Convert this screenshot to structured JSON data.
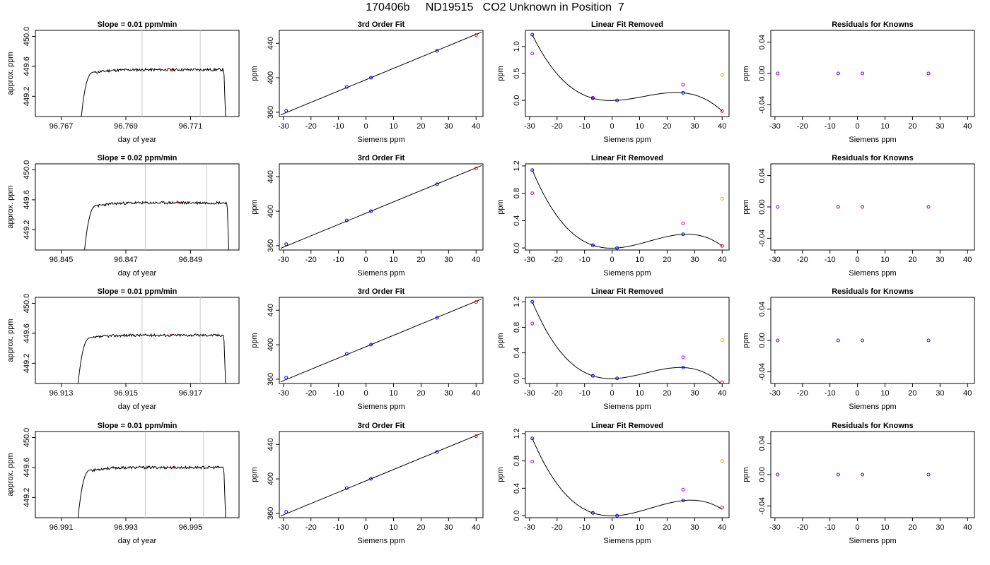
{
  "title": "170406b     ND19515   CO2 Unknown in Position  7",
  "colors": {
    "blue": "#0000ff",
    "magenta": "#cc00cc",
    "orange": "#ffa500",
    "red": "#ff0000",
    "purple": "#7a00cc",
    "vline": "#c8c8c8"
  },
  "chart_data": [
    {
      "row": 0,
      "kind": "trace",
      "type": "line",
      "title": "Slope =  0.01  ppm/min",
      "xlabel": "day of year",
      "ylabel": "approx. ppm",
      "xlim": [
        96.7662,
        96.7725
      ],
      "ylim": [
        448.93,
        450.08
      ],
      "xticks": [
        96.767,
        96.769,
        96.771
      ],
      "xdec": 3,
      "yticks": [
        449.2,
        449.6,
        450.0
      ],
      "ydec": 1,
      "start": 96.7676,
      "end": 96.7721,
      "plateau": 449.555,
      "vlines": [
        96.7695,
        96.7713
      ],
      "marker": [
        96.7704,
        449.55
      ],
      "seed": 11
    },
    {
      "row": 0,
      "kind": "fit",
      "type": "scatter",
      "title": "3rd Order Fit",
      "xlabel": "Siemens ppm",
      "ylabel": "ppm",
      "xlim": [
        -31.5,
        42.5
      ],
      "ylim": [
        355,
        455
      ],
      "xticks": [
        -30,
        -20,
        -10,
        0,
        10,
        20,
        30,
        40
      ],
      "yticks": [
        360,
        400,
        440
      ],
      "line": [
        [
          -31,
          357
        ],
        [
          42,
          453
        ]
      ],
      "points": [
        [
          -29,
          361.8
        ],
        [
          -7,
          389.3
        ],
        [
          1.8,
          400.1
        ],
        [
          25.8,
          431.2
        ],
        [
          40,
          449.6
        ]
      ]
    },
    {
      "row": 0,
      "kind": "linfit",
      "type": "scatter",
      "title": "Linear Fit Removed",
      "xlabel": "Siemens ppm",
      "ylabel": "ppm",
      "xlim": [
        -31.5,
        42.5
      ],
      "ylim": [
        -0.3,
        1.3
      ],
      "xticks": [
        -30,
        -20,
        -10,
        0,
        10,
        20,
        30,
        40
      ],
      "yticks": [
        0.0,
        0.5,
        1.0
      ],
      "ydec": 1,
      "curve": [
        1.22,
        0.04,
        0.0,
        0.14,
        -0.2
      ],
      "blue": [
        [
          -29,
          1.22
        ],
        [
          -7,
          0.04
        ],
        [
          1.8,
          0.0
        ],
        [
          25.8,
          0.14
        ]
      ],
      "magenta": [
        [
          -29,
          0.87
        ],
        [
          -7,
          0.05
        ],
        [
          25.8,
          0.29
        ]
      ],
      "orange": [
        40,
        0.47
      ],
      "red": [
        40,
        -0.2
      ]
    },
    {
      "row": 0,
      "kind": "resid",
      "type": "scatter",
      "title": "Residuals for Knowns",
      "xlabel": "Siemens ppm",
      "ylabel": "ppm",
      "xlim": [
        -31.5,
        42.5
      ],
      "ylim": [
        -0.055,
        0.055
      ],
      "xticks": [
        -30,
        -20,
        -10,
        0,
        10,
        20,
        30,
        40
      ],
      "yticks": [
        -0.04,
        0.0,
        0.04
      ],
      "ydec": 2,
      "points": [
        [
          -29,
          0
        ],
        [
          -7,
          0
        ],
        [
          1.8,
          0
        ],
        [
          25.8,
          0
        ]
      ]
    },
    {
      "row": 1,
      "kind": "trace",
      "type": "line",
      "title": "Slope =  0.02  ppm/min",
      "xlabel": "day of year",
      "ylabel": "approx. ppm",
      "xlim": [
        96.8442,
        96.8505
      ],
      "ylim": [
        448.93,
        450.08
      ],
      "xticks": [
        96.845,
        96.847,
        96.849
      ],
      "xdec": 3,
      "yticks": [
        449.2,
        449.6,
        450.0
      ],
      "ydec": 1,
      "start": 96.8457,
      "end": 96.8502,
      "plateau": 449.56,
      "vlines": [
        96.8476,
        96.8495
      ],
      "marker": [
        96.8486,
        449.57
      ],
      "seed": 23
    },
    {
      "row": 1,
      "kind": "fit",
      "type": "scatter",
      "title": "3rd Order Fit",
      "xlabel": "Siemens ppm",
      "ylabel": "ppm",
      "xlim": [
        -31.5,
        42.5
      ],
      "ylim": [
        355,
        455
      ],
      "xticks": [
        -30,
        -20,
        -10,
        0,
        10,
        20,
        30,
        40
      ],
      "yticks": [
        360,
        400,
        440
      ],
      "line": [
        [
          -31,
          357
        ],
        [
          42,
          453
        ]
      ],
      "points": [
        [
          -29,
          361.8
        ],
        [
          -7,
          389.3
        ],
        [
          1.8,
          400.1
        ],
        [
          25.8,
          431.2
        ],
        [
          40,
          449.6
        ]
      ]
    },
    {
      "row": 1,
      "kind": "linfit",
      "type": "scatter",
      "title": "Linear Fit Removed",
      "xlabel": "Siemens ppm",
      "ylabel": "ppm",
      "xlim": [
        -31.5,
        42.5
      ],
      "ylim": [
        -0.03,
        1.23
      ],
      "xticks": [
        -30,
        -20,
        -10,
        0,
        10,
        20,
        30,
        40
      ],
      "yticks": [
        0.0,
        0.4,
        0.8,
        1.2
      ],
      "ydec": 1,
      "curve": [
        1.14,
        0.04,
        0.0,
        0.2,
        0.03
      ],
      "blue": [
        [
          -29,
          1.14
        ],
        [
          -7,
          0.04
        ],
        [
          1.8,
          0.0
        ],
        [
          25.8,
          0.2
        ]
      ],
      "magenta": [
        [
          -29,
          0.8
        ],
        [
          -7,
          0.04
        ],
        [
          25.8,
          0.36
        ]
      ],
      "orange": [
        40,
        0.72
      ],
      "red": [
        40,
        0.03
      ]
    },
    {
      "row": 1,
      "kind": "resid",
      "type": "scatter",
      "title": "Residuals for Knowns",
      "xlabel": "Siemens ppm",
      "ylabel": "ppm",
      "xlim": [
        -31.5,
        42.5
      ],
      "ylim": [
        -0.055,
        0.055
      ],
      "xticks": [
        -30,
        -20,
        -10,
        0,
        10,
        20,
        30,
        40
      ],
      "yticks": [
        -0.04,
        0.0,
        0.04
      ],
      "ydec": 2,
      "points": [
        [
          -29,
          0
        ],
        [
          -7,
          0
        ],
        [
          1.8,
          0
        ],
        [
          25.8,
          0
        ]
      ]
    },
    {
      "row": 2,
      "kind": "trace",
      "type": "line",
      "title": "Slope =  0.01  ppm/min",
      "xlabel": "day of year",
      "ylabel": "approx. ppm",
      "xlim": [
        96.9122,
        96.9185
      ],
      "ylim": [
        448.93,
        450.08
      ],
      "xticks": [
        96.913,
        96.915,
        96.917
      ],
      "xdec": 3,
      "yticks": [
        449.2,
        449.6,
        450.0
      ],
      "ydec": 1,
      "start": 96.9135,
      "end": 96.9181,
      "plateau": 449.575,
      "vlines": [
        96.9155,
        96.9173
      ],
      "marker": [
        96.9164,
        449.575
      ],
      "seed": 37
    },
    {
      "row": 2,
      "kind": "fit",
      "type": "scatter",
      "title": "3rd Order Fit",
      "xlabel": "Siemens ppm",
      "ylabel": "ppm",
      "xlim": [
        -31.5,
        42.5
      ],
      "ylim": [
        355,
        455
      ],
      "xticks": [
        -30,
        -20,
        -10,
        0,
        10,
        20,
        30,
        40
      ],
      "yticks": [
        360,
        400,
        440
      ],
      "line": [
        [
          -31,
          357
        ],
        [
          42,
          453
        ]
      ],
      "points": [
        [
          -29,
          361.8
        ],
        [
          -7,
          389.3
        ],
        [
          1.8,
          400.1
        ],
        [
          25.8,
          431.2
        ],
        [
          40,
          449.6
        ]
      ]
    },
    {
      "row": 2,
      "kind": "linfit",
      "type": "scatter",
      "title": "Linear Fit Removed",
      "xlabel": "Siemens ppm",
      "ylabel": "ppm",
      "xlim": [
        -31.5,
        42.5
      ],
      "ylim": [
        -0.08,
        1.27
      ],
      "xticks": [
        -30,
        -20,
        -10,
        0,
        10,
        20,
        30,
        40
      ],
      "yticks": [
        0.0,
        0.4,
        0.8,
        1.2
      ],
      "ydec": 1,
      "curve": [
        1.2,
        0.04,
        0.0,
        0.17,
        -0.06
      ],
      "blue": [
        [
          -29,
          1.2
        ],
        [
          -7,
          0.04
        ],
        [
          1.8,
          0.0
        ],
        [
          25.8,
          0.17
        ]
      ],
      "magenta": [
        [
          -29,
          0.86
        ],
        [
          -7,
          0.04
        ],
        [
          25.8,
          0.33
        ]
      ],
      "orange": [
        40,
        0.6
      ],
      "red": [
        40,
        -0.06
      ]
    },
    {
      "row": 2,
      "kind": "resid",
      "type": "scatter",
      "title": "Residuals for Knowns",
      "xlabel": "Siemens ppm",
      "ylabel": "ppm",
      "xlim": [
        -31.5,
        42.5
      ],
      "ylim": [
        -0.055,
        0.055
      ],
      "xticks": [
        -30,
        -20,
        -10,
        0,
        10,
        20,
        30,
        40
      ],
      "yticks": [
        -0.04,
        0.0,
        0.04
      ],
      "ydec": 2,
      "points": [
        [
          -29,
          0
        ],
        [
          -7,
          0
        ],
        [
          1.8,
          0
        ],
        [
          25.8,
          0
        ]
      ]
    },
    {
      "row": 3,
      "kind": "trace",
      "type": "line",
      "title": "Slope =  0.01  ppm/min",
      "xlabel": "day of year",
      "ylabel": "approx. ppm",
      "xlim": [
        96.9902,
        96.9965
      ],
      "ylim": [
        448.93,
        450.08
      ],
      "xticks": [
        96.991,
        96.993,
        96.995
      ],
      "xdec": 3,
      "yticks": [
        449.2,
        449.6,
        450.0
      ],
      "ydec": 1,
      "start": 96.9915,
      "end": 96.9961,
      "plateau": 449.6,
      "vlines": [
        96.9936,
        96.9954
      ],
      "marker": [
        96.9945,
        449.6
      ],
      "seed": 53
    },
    {
      "row": 3,
      "kind": "fit",
      "type": "scatter",
      "title": "3rd Order Fit",
      "xlabel": "Siemens ppm",
      "ylabel": "ppm",
      "xlim": [
        -31.5,
        42.5
      ],
      "ylim": [
        355,
        455
      ],
      "xticks": [
        -30,
        -20,
        -10,
        0,
        10,
        20,
        30,
        40
      ],
      "yticks": [
        360,
        400,
        440
      ],
      "line": [
        [
          -31,
          357
        ],
        [
          42,
          453
        ]
      ],
      "points": [
        [
          -29,
          361.8
        ],
        [
          -7,
          389.3
        ],
        [
          1.8,
          400.1
        ],
        [
          25.8,
          431.2
        ],
        [
          40,
          449.6
        ]
      ]
    },
    {
      "row": 3,
      "kind": "linfit",
      "type": "scatter",
      "title": "Linear Fit Removed",
      "xlabel": "Siemens ppm",
      "ylabel": "ppm",
      "xlim": [
        -31.5,
        42.5
      ],
      "ylim": [
        -0.03,
        1.23
      ],
      "xticks": [
        -30,
        -20,
        -10,
        0,
        10,
        20,
        30,
        40
      ],
      "yticks": [
        0.0,
        0.4,
        0.8,
        1.2
      ],
      "ydec": 1,
      "curve": [
        1.13,
        0.04,
        0.0,
        0.22,
        0.12
      ],
      "blue": [
        [
          -29,
          1.13
        ],
        [
          -7,
          0.04
        ],
        [
          1.8,
          0.0
        ],
        [
          25.8,
          0.22
        ]
      ],
      "magenta": [
        [
          -29,
          0.79
        ],
        [
          -7,
          0.04
        ],
        [
          25.8,
          0.38
        ]
      ],
      "orange": [
        40,
        0.8
      ],
      "red": [
        40,
        0.12
      ]
    },
    {
      "row": 3,
      "kind": "resid",
      "type": "scatter",
      "title": "Residuals for Knowns",
      "xlabel": "Siemens ppm",
      "ylabel": "ppm",
      "xlim": [
        -31.5,
        42.5
      ],
      "ylim": [
        -0.055,
        0.055
      ],
      "xticks": [
        -30,
        -20,
        -10,
        0,
        10,
        20,
        30,
        40
      ],
      "yticks": [
        -0.04,
        0.0,
        0.04
      ],
      "ydec": 2,
      "points": [
        [
          -29,
          0
        ],
        [
          -7,
          0
        ],
        [
          1.8,
          0
        ],
        [
          25.8,
          0
        ]
      ]
    }
  ]
}
